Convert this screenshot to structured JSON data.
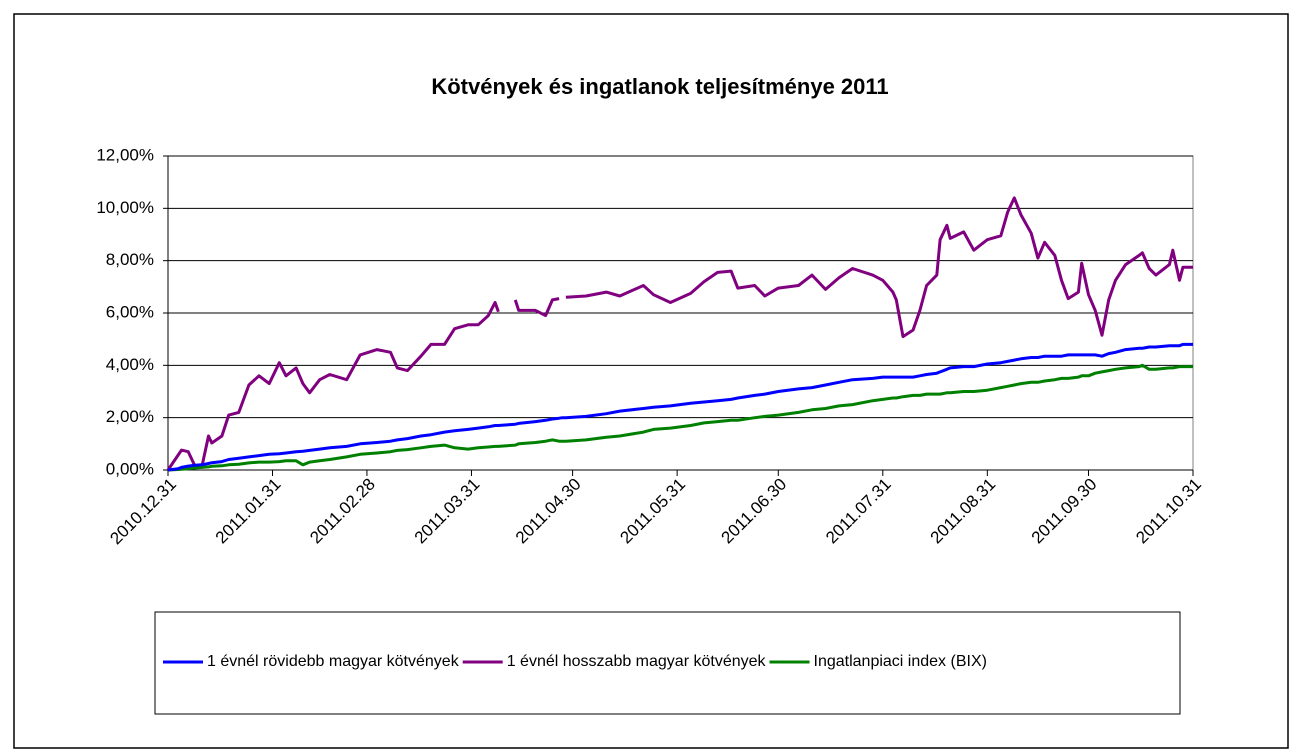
{
  "chart_data": {
    "type": "line",
    "title": "Kötvények és ingatlanok teljesítménye 2011",
    "x": [
      "2010.12.31",
      "2011.01.03",
      "2011.01.04",
      "2011.01.06",
      "2011.01.08",
      "2011.01.10",
      "2011.01.12",
      "2011.01.13",
      "2011.01.16",
      "2011.01.18",
      "2011.01.21",
      "2011.01.24",
      "2011.01.27",
      "2011.01.30",
      "2011.02.02",
      "2011.02.04",
      "2011.02.07",
      "2011.02.09",
      "2011.02.11",
      "2011.02.14",
      "2011.02.17",
      "2011.02.22",
      "2011.02.26",
      "2011.03.03",
      "2011.03.07",
      "2011.03.09",
      "2011.03.12",
      "2011.03.16",
      "2011.03.19",
      "2011.03.23",
      "2011.03.26",
      "2011.03.30",
      "2011.04.02",
      "2011.04.05",
      "2011.04.07",
      "2011.04.08",
      "2011.04.10",
      "2011.04.13",
      "2011.04.14",
      "2011.04.19",
      "2011.04.22",
      "2011.04.24",
      "2011.04.26",
      "2011.04.27",
      "2011.04.28",
      "2011.05.04",
      "2011.05.10",
      "2011.05.14",
      "2011.05.21",
      "2011.05.24",
      "2011.05.29",
      "2011.06.04",
      "2011.06.08",
      "2011.06.12",
      "2011.06.16",
      "2011.06.18",
      "2011.06.23",
      "2011.06.26",
      "2011.06.30",
      "2011.07.06",
      "2011.07.10",
      "2011.07.14",
      "2011.07.18",
      "2011.07.22",
      "2011.07.28",
      "2011.07.31",
      "2011.08.03",
      "2011.08.04",
      "2011.08.06",
      "2011.08.09",
      "2011.08.11",
      "2011.08.13",
      "2011.08.16",
      "2011.08.17",
      "2011.08.19",
      "2011.08.20",
      "2011.08.24",
      "2011.08.27",
      "2011.08.31",
      "2011.09.04",
      "2011.09.06",
      "2011.09.08",
      "2011.09.10",
      "2011.09.13",
      "2011.09.15",
      "2011.09.17",
      "2011.09.20",
      "2011.09.22",
      "2011.09.24",
      "2011.09.27",
      "2011.09.28",
      "2011.09.30",
      "2011.10.02",
      "2011.10.04",
      "2011.10.06",
      "2011.10.08",
      "2011.10.11",
      "2011.10.15",
      "2011.10.16",
      "2011.10.18",
      "2011.10.20",
      "2011.10.24",
      "2011.10.25",
      "2011.10.27",
      "2011.10.28",
      "2011.10.31"
    ],
    "series": [
      {
        "name": "1 évnél rövidebb magyar kötvények",
        "color": "#0000ff",
        "values": [
          0,
          0.05,
          0.1,
          0.15,
          0.18,
          0.2,
          0.25,
          0.28,
          0.32,
          0.4,
          0.45,
          0.5,
          0.55,
          0.6,
          0.62,
          0.65,
          0.7,
          0.72,
          0.75,
          0.8,
          0.85,
          0.9,
          1.0,
          1.05,
          1.1,
          1.15,
          1.2,
          1.3,
          1.35,
          1.45,
          1.5,
          1.55,
          1.6,
          1.65,
          1.7,
          1.7,
          1.72,
          1.75,
          1.78,
          1.85,
          1.9,
          1.95,
          1.98,
          2.0,
          2.0,
          2.05,
          2.15,
          2.25,
          2.35,
          2.4,
          2.45,
          2.55,
          2.6,
          2.65,
          2.7,
          2.75,
          2.85,
          2.9,
          3.0,
          3.1,
          3.15,
          3.25,
          3.35,
          3.45,
          3.5,
          3.55,
          3.55,
          3.55,
          3.55,
          3.55,
          3.6,
          3.65,
          3.7,
          3.75,
          3.85,
          3.9,
          3.95,
          3.95,
          4.05,
          4.1,
          4.15,
          4.2,
          4.25,
          4.3,
          4.3,
          4.35,
          4.35,
          4.35,
          4.4,
          4.4,
          4.4,
          4.4,
          4.4,
          4.35,
          4.45,
          4.5,
          4.6,
          4.65,
          4.65,
          4.7,
          4.7,
          4.75,
          4.75,
          4.75,
          4.8,
          4.8
        ]
      },
      {
        "name": "1 évnél hosszabb magyar kötvények",
        "color": "#800080",
        "values": [
          0,
          0.57,
          0.76,
          0.7,
          0.15,
          0.1,
          1.3,
          1.03,
          1.3,
          2.1,
          2.2,
          3.25,
          3.6,
          3.3,
          4.1,
          3.6,
          3.9,
          3.3,
          2.95,
          3.45,
          3.65,
          3.45,
          4.4,
          4.6,
          4.5,
          3.9,
          3.8,
          4.35,
          4.8,
          4.8,
          5.4,
          5.55,
          5.55,
          5.9,
          6.4,
          6.05,
          null,
          6.5,
          6.1,
          6.1,
          5.9,
          6.5,
          6.55,
          null,
          6.6,
          6.65,
          6.8,
          6.65,
          7.05,
          6.7,
          6.4,
          6.75,
          7.2,
          7.55,
          7.6,
          6.95,
          7.05,
          6.65,
          6.95,
          7.05,
          7.45,
          6.9,
          7.35,
          7.7,
          7.45,
          7.25,
          6.8,
          6.5,
          5.1,
          5.35,
          6.1,
          7.05,
          7.45,
          8.8,
          9.35,
          8.85,
          9.1,
          8.4,
          8.8,
          8.95,
          9.85,
          10.4,
          9.75,
          9.05,
          8.1,
          8.7,
          8.2,
          7.25,
          6.55,
          6.8,
          7.9,
          6.7,
          6.1,
          5.15,
          6.5,
          7.25,
          7.85,
          8.2,
          8.3,
          7.7,
          7.45,
          7.85,
          8.4,
          7.25,
          7.75,
          7.75
        ]
      },
      {
        "name": "Ingatlanpiaci index (BIX)",
        "color": "#008000",
        "values": [
          0,
          0.02,
          0.03,
          0.05,
          0.08,
          0.1,
          0.12,
          0.14,
          0.16,
          0.2,
          0.22,
          0.27,
          0.3,
          0.3,
          0.32,
          0.35,
          0.35,
          0.2,
          0.3,
          0.35,
          0.4,
          0.5,
          0.6,
          0.65,
          0.7,
          0.75,
          0.78,
          0.85,
          0.9,
          0.95,
          0.85,
          0.8,
          0.85,
          0.88,
          0.9,
          0.9,
          0.92,
          0.95,
          1.0,
          1.05,
          1.1,
          1.15,
          1.1,
          1.1,
          1.1,
          1.15,
          1.25,
          1.3,
          1.45,
          1.55,
          1.6,
          1.7,
          1.8,
          1.85,
          1.9,
          1.9,
          2.0,
          2.05,
          2.1,
          2.2,
          2.3,
          2.35,
          2.45,
          2.5,
          2.65,
          2.7,
          2.75,
          2.75,
          2.8,
          2.85,
          2.85,
          2.9,
          2.9,
          2.9,
          2.95,
          2.95,
          3.0,
          3.0,
          3.05,
          3.15,
          3.2,
          3.25,
          3.3,
          3.35,
          3.35,
          3.4,
          3.45,
          3.5,
          3.5,
          3.55,
          3.6,
          3.6,
          3.7,
          3.75,
          3.8,
          3.85,
          3.9,
          3.95,
          4.0,
          3.85,
          3.85,
          3.9,
          3.9,
          3.95,
          3.95,
          3.95
        ]
      }
    ],
    "xlim": [
      "2010.12.31",
      "2011.10.31"
    ],
    "xticks": [
      "2010.12.31",
      "2011.01.31",
      "2011.02.28",
      "2011.03.31",
      "2011.04.30",
      "2011.05.31",
      "2011.06.30",
      "2011.07.31",
      "2011.08.31",
      "2011.09.30",
      "2011.10.31"
    ],
    "ylim": [
      0,
      12
    ],
    "yticks": [
      {
        "value": 0,
        "label": "0,00%"
      },
      {
        "value": 2,
        "label": "2,00%"
      },
      {
        "value": 4,
        "label": "4,00%"
      },
      {
        "value": 6,
        "label": "6,00%"
      },
      {
        "value": 8,
        "label": "8,00%"
      },
      {
        "value": 10,
        "label": "10,00%"
      },
      {
        "value": 12,
        "label": "12,00%"
      }
    ],
    "grid": true,
    "legend": "bottom"
  }
}
